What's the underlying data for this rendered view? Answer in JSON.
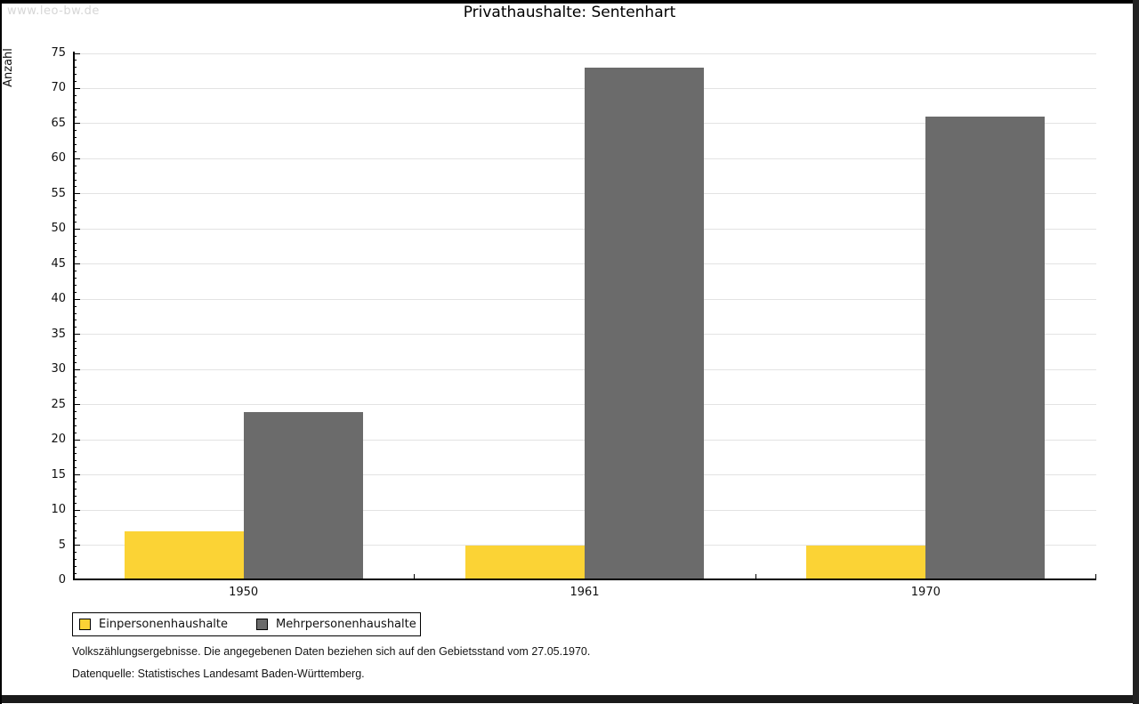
{
  "site": {
    "watermark": "www.leo-bw.de"
  },
  "chart_data": {
    "type": "bar",
    "title": "Privathaushalte: Sentenhart",
    "ylabel": "Anzahl",
    "xlabel": "",
    "categories": [
      "1950",
      "1961",
      "1970"
    ],
    "series": [
      {
        "name": "Einpersonenhaushalte",
        "color": "#FBD335",
        "values": [
          7,
          5,
          5
        ]
      },
      {
        "name": "Mehrpersonenhaushalte",
        "color": "#6B6B6B",
        "values": [
          24,
          73,
          66
        ]
      }
    ],
    "ylim": [
      0,
      75
    ],
    "ytick_major": 5,
    "ytick_minor": 1,
    "grid": "horizontal-major",
    "legend_position": "bottom-left"
  },
  "footnotes": {
    "line1": "Volkszählungsergebnisse. Die angegebenen Daten beziehen sich auf den Gebietsstand vom 27.05.1970.",
    "line2": "Datenquelle: Statistisches Landesamt Baden-Württemberg."
  }
}
